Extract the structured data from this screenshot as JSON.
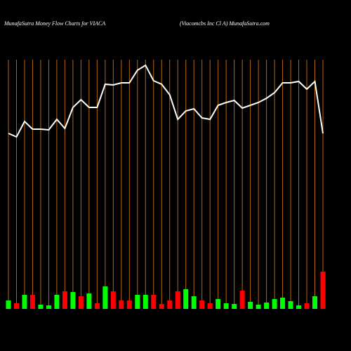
{
  "chart_data": {
    "type": "money-flow",
    "title": "MunafaSutra  Money Flow  Charts for VIACA",
    "subtitle": "(Viacomcbs Inc Cl A) MunafaSutra.com",
    "categories": [
      null,
      null,
      null,
      null,
      null,
      null,
      null,
      null,
      null,
      null,
      null,
      null,
      null,
      null,
      null,
      null,
      null,
      null,
      null,
      null,
      null,
      null,
      null,
      null,
      null,
      null,
      null,
      null,
      null,
      null,
      null,
      null,
      null,
      null,
      null,
      null,
      null,
      null,
      null,
      null
    ],
    "ylim": [
      0,
      500
    ],
    "line_color": "#ffffff",
    "grid_color": "#b8660b",
    "line_values": [
      310,
      305,
      327,
      316,
      316,
      315,
      330,
      317,
      347,
      358,
      347,
      347,
      380,
      379,
      382,
      382,
      400,
      407,
      385,
      380,
      365,
      330,
      342,
      345,
      332,
      330,
      350,
      354,
      357,
      346,
      350,
      354,
      360,
      368,
      382,
      382,
      384,
      373,
      384,
      310
    ],
    "volume_values": [
      12,
      8,
      20,
      20,
      6,
      5,
      20,
      25,
      24,
      18,
      22,
      8,
      32,
      25,
      12,
      12,
      20,
      20,
      20,
      7,
      12,
      25,
      28,
      18,
      12,
      8,
      14,
      8,
      7,
      26,
      10,
      6,
      9,
      14,
      16,
      11,
      5,
      8,
      18,
      53
    ],
    "volume_colors": [
      "#00ff00",
      "#ff0000",
      "#00ff00",
      "#ff0000",
      "#00ff00",
      "#00ff00",
      "#00ff00",
      "#ff0000",
      "#00ff00",
      "#ff0000",
      "#00ff00",
      "#ff0000",
      "#00ff00",
      "#ff0000",
      "#ff0000",
      "#ff0000",
      "#00ff00",
      "#00ff00",
      "#ff0000",
      "#ff0000",
      "#ff0000",
      "#ff0000",
      "#00ff00",
      "#00ff00",
      "#ff0000",
      "#ff0000",
      "#00ff00",
      "#00ff00",
      "#00ff00",
      "#ff0000",
      "#00ff00",
      "#00ff00",
      "#00ff00",
      "#00ff00",
      "#00ff00",
      "#00ff00",
      "#00ff00",
      "#ff0000",
      "#00ff00",
      "#ff0000"
    ]
  }
}
